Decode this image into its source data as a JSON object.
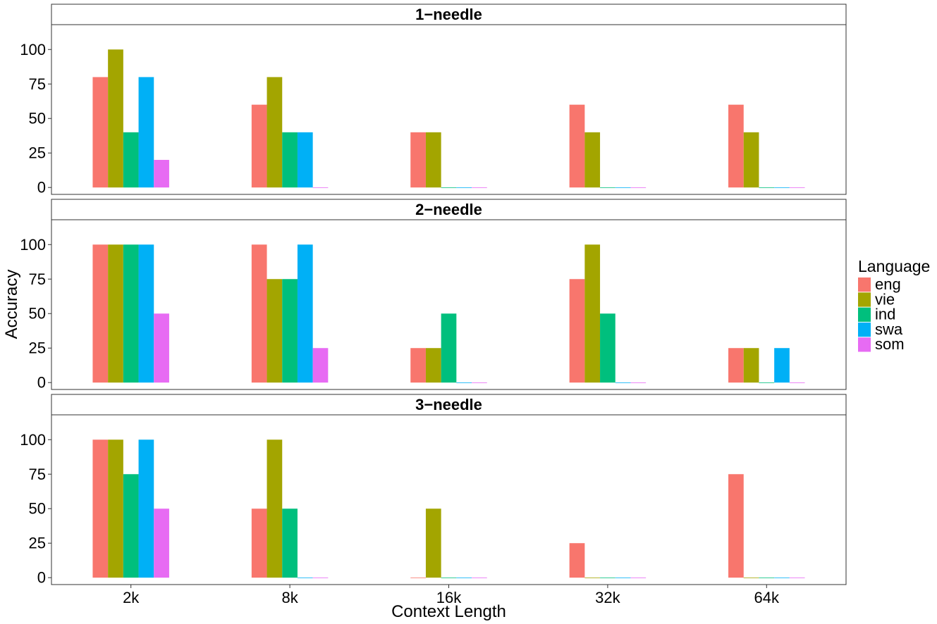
{
  "chart_data": {
    "type": "bar",
    "xlabel": "Context Length",
    "ylabel": "Accuracy",
    "ylim": [
      -5,
      118
    ],
    "yticks": [
      0,
      25,
      50,
      75,
      100
    ],
    "categories": [
      "2k",
      "8k",
      "16k",
      "32k",
      "64k"
    ],
    "legend": {
      "title": "Language",
      "placement": "right",
      "entries": [
        {
          "name": "eng",
          "color": "#F8766D"
        },
        {
          "name": "vie",
          "color": "#A3A500"
        },
        {
          "name": "ind",
          "color": "#00BF7D"
        },
        {
          "name": "swa",
          "color": "#00B0F6"
        },
        {
          "name": "som",
          "color": "#E76BF3"
        }
      ]
    },
    "panels": [
      {
        "title": "1−needle",
        "series": [
          {
            "name": "eng",
            "values": [
              80,
              60,
              40,
              60,
              60
            ]
          },
          {
            "name": "vie",
            "values": [
              100,
              80,
              40,
              40,
              40
            ]
          },
          {
            "name": "ind",
            "values": [
              40,
              40,
              0,
              0,
              0
            ]
          },
          {
            "name": "swa",
            "values": [
              80,
              40,
              0,
              0,
              0
            ]
          },
          {
            "name": "som",
            "values": [
              20,
              0,
              0,
              0,
              0
            ]
          }
        ]
      },
      {
        "title": "2−needle",
        "series": [
          {
            "name": "eng",
            "values": [
              100,
              100,
              25,
              75,
              25
            ]
          },
          {
            "name": "vie",
            "values": [
              100,
              75,
              25,
              100,
              25
            ]
          },
          {
            "name": "ind",
            "values": [
              100,
              75,
              50,
              50,
              0
            ]
          },
          {
            "name": "swa",
            "values": [
              100,
              100,
              0,
              0,
              25
            ]
          },
          {
            "name": "som",
            "values": [
              50,
              25,
              0,
              0,
              0
            ]
          }
        ]
      },
      {
        "title": "3−needle",
        "series": [
          {
            "name": "eng",
            "values": [
              100,
              50,
              0,
              25,
              75
            ]
          },
          {
            "name": "vie",
            "values": [
              100,
              100,
              50,
              0,
              0
            ]
          },
          {
            "name": "ind",
            "values": [
              75,
              50,
              0,
              0,
              0
            ]
          },
          {
            "name": "swa",
            "values": [
              100,
              0,
              0,
              0,
              0
            ]
          },
          {
            "name": "som",
            "values": [
              50,
              0,
              0,
              0,
              0
            ]
          }
        ]
      }
    ]
  }
}
